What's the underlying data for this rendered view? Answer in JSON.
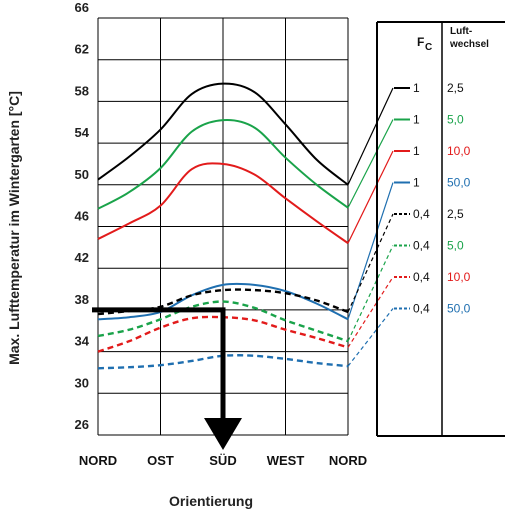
{
  "chart_data": {
    "type": "line",
    "title": "",
    "xlabel": "Orientierung",
    "ylabel": "Max. Lufttemperatur im Wintergarten [°C]",
    "categories": [
      "NORD",
      "OST",
      "SÜD",
      "WEST",
      "NORD"
    ],
    "ylim": [
      26,
      66
    ],
    "yticks": [
      "26",
      "30",
      "34",
      "38",
      "42",
      "46",
      "50",
      "54",
      "58",
      "62",
      "66"
    ],
    "grid": true,
    "legend": {
      "placement": "right",
      "header_fc": "F",
      "header_fc_sub": "C",
      "header_luft_1": "Luft-",
      "header_luft_2": "wechsel"
    },
    "series": [
      {
        "fc": "1",
        "luftwechsel": "2,5",
        "color": "#000000",
        "dash": false,
        "x": [
          0,
          0.5,
          1,
          1.5,
          2,
          2.5,
          3,
          3.5,
          4
        ],
        "values": [
          50.5,
          52.7,
          55.3,
          58.7,
          59.7,
          58.9,
          55.8,
          52.4,
          50.0
        ]
      },
      {
        "fc": "1",
        "luftwechsel": "5,0",
        "color": "#1aa34a",
        "dash": false,
        "x": [
          0,
          0.5,
          1,
          1.5,
          2,
          2.5,
          3,
          3.5,
          4
        ],
        "values": [
          47.7,
          49.3,
          51.6,
          55.1,
          56.2,
          55.5,
          52.6,
          50.0,
          47.8
        ]
      },
      {
        "fc": "1",
        "luftwechsel": "10,0",
        "color": "#e21b1b",
        "dash": false,
        "x": [
          0,
          0.5,
          1,
          1.5,
          2,
          2.5,
          3,
          3.5,
          4
        ],
        "values": [
          44.8,
          46.3,
          48.0,
          51.5,
          52.0,
          51.0,
          48.7,
          46.5,
          44.4
        ]
      },
      {
        "fc": "1",
        "luftwechsel": "50,0",
        "color": "#1f6fb0",
        "dash": false,
        "x": [
          0,
          0.5,
          1,
          1.5,
          2,
          2.5,
          3,
          3.5,
          4
        ],
        "values": [
          37.1,
          37.3,
          37.8,
          39.4,
          40.4,
          40.4,
          39.8,
          38.6,
          37.1
        ]
      },
      {
        "fc": "0,4",
        "luftwechsel": "2,5",
        "color": "#000000",
        "dash": true,
        "x": [
          0,
          0.5,
          1,
          1.5,
          2,
          2.5,
          3,
          3.5,
          4
        ],
        "values": [
          37.6,
          37.9,
          38.3,
          39.4,
          39.9,
          39.9,
          39.6,
          38.9,
          37.8
        ]
      },
      {
        "fc": "0,4",
        "luftwechsel": "5,0",
        "color": "#1aa34a",
        "dash": true,
        "x": [
          0,
          0.5,
          1,
          1.5,
          2,
          2.5,
          3,
          3.5,
          4
        ],
        "values": [
          35.5,
          36.1,
          37.1,
          38.3,
          38.8,
          38.2,
          37.0,
          36.0,
          35.0
        ]
      },
      {
        "fc": "0,4",
        "luftwechsel": "10,0",
        "color": "#e21b1b",
        "dash": true,
        "x": [
          0,
          0.5,
          1,
          1.5,
          2,
          2.5,
          3,
          3.5,
          4
        ],
        "values": [
          34.0,
          35.0,
          36.3,
          37.2,
          37.3,
          37.0,
          36.1,
          35.3,
          34.4
        ]
      },
      {
        "fc": "0,4",
        "luftwechsel": "50,0",
        "color": "#1f6fb0",
        "dash": true,
        "x": [
          0,
          0.5,
          1,
          1.5,
          2,
          2.5,
          3,
          3.5,
          4
        ],
        "values": [
          32.4,
          32.5,
          32.7,
          33.1,
          33.6,
          33.6,
          33.3,
          32.9,
          32.6
        ]
      }
    ],
    "annotation": {
      "type": "arrow",
      "from_y": 38,
      "at_x": 2,
      "description_from": "NORD",
      "color": "#000000"
    }
  }
}
